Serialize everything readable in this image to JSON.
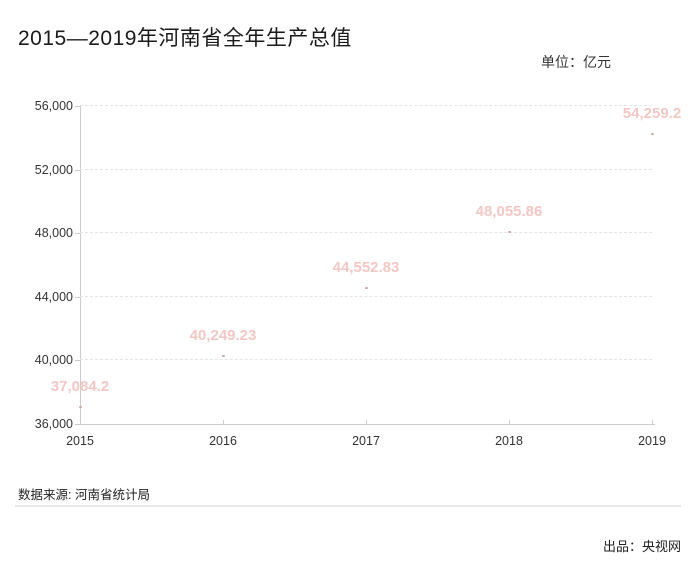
{
  "header": {
    "title": "2015—2019年河南省全年生产总值",
    "unit_label": "单位：亿元"
  },
  "chart_data": {
    "type": "scatter",
    "title": "2015—2019年河南省全年生产总值",
    "unit": "亿元",
    "categories": [
      "2015",
      "2016",
      "2017",
      "2018",
      "2019"
    ],
    "values": [
      37084.2,
      40249.23,
      44552.83,
      48055.86,
      54259.2
    ],
    "value_labels": [
      "37,084.2",
      "40,249.23",
      "44,552.83",
      "48,055.86",
      "54,259.2"
    ],
    "xlabel": "",
    "ylabel": "",
    "ylim": [
      36000,
      56000
    ],
    "y_tick_values": [
      36000,
      40000,
      44000,
      48000,
      52000,
      56000
    ],
    "y_tick_labels": [
      "36,000",
      "40,000",
      "44,000",
      "48,000",
      "52,000",
      "56,000"
    ],
    "grid": "horizontal-dashed",
    "legend_position": "none",
    "colors": {
      "data_label": "#f3c7c3",
      "marker": "#c9a8a4",
      "gridline": "#e4e4e4",
      "axis": "#cccccc",
      "tick_text": "#333333"
    }
  },
  "footer": {
    "source": "数据来源: 河南省统计局",
    "producer": "出品：央视网"
  }
}
